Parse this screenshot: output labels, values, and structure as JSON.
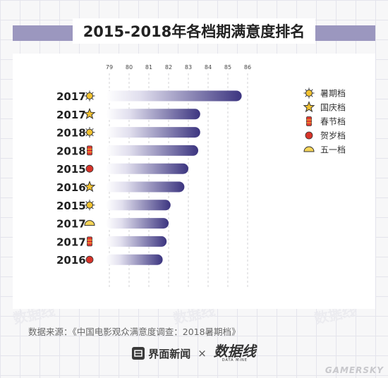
{
  "title": "2015-2018年各档期满意度排名",
  "source": "数据来源：《中国电影观众满意度调查：2018暑期档》",
  "brand_primary": "界面新闻",
  "brand_separator": "×",
  "brand_secondary": "数据线",
  "brand_secondary_sub": "DATA MINE",
  "watermark": "数据线",
  "corner_mark": "GAMERSKY",
  "colors": {
    "title_bar": "#9b97bf",
    "bar_dark": "#3c3580",
    "bar_light": "#ffffff",
    "sun": "#f2c230",
    "star": "#f2c230",
    "lantern": "#e03a2f",
    "dot": "#d8342a",
    "halfmoon": "#f6d458"
  },
  "legend": [
    {
      "label": "暑期档",
      "icon": "sun-icon"
    },
    {
      "label": "国庆档",
      "icon": "star-icon"
    },
    {
      "label": "春节档",
      "icon": "lantern-icon"
    },
    {
      "label": "贺岁档",
      "icon": "dot-icon"
    },
    {
      "label": "五一档",
      "icon": "halfmoon-icon"
    }
  ],
  "chart_data": {
    "type": "bar",
    "orientation": "horizontal",
    "title": "2015-2018年各档期满意度排名",
    "xlim": [
      79,
      86
    ],
    "x_ticks": [
      "79",
      "80",
      "81",
      "82",
      "83",
      "84",
      "85",
      "86"
    ],
    "grid": "vertical dashed",
    "legend_position": "top-right",
    "rows": [
      {
        "year": "2017",
        "period": "暑期档",
        "icon": "sun-icon",
        "value": 85.7
      },
      {
        "year": "2017",
        "period": "国庆档",
        "icon": "star-icon",
        "value": 83.6
      },
      {
        "year": "2018",
        "period": "暑期档",
        "icon": "sun-icon",
        "value": 83.6
      },
      {
        "year": "2018",
        "period": "春节档",
        "icon": "lantern-icon",
        "value": 83.5
      },
      {
        "year": "2015",
        "period": "贺岁档",
        "icon": "dot-icon",
        "value": 83.0
      },
      {
        "year": "2016",
        "period": "国庆档",
        "icon": "star-icon",
        "value": 82.8
      },
      {
        "year": "2015",
        "period": "暑期档",
        "icon": "sun-icon",
        "value": 82.1
      },
      {
        "year": "2017",
        "period": "五一档",
        "icon": "halfmoon-icon",
        "value": 82.0
      },
      {
        "year": "2017",
        "period": "春节档",
        "icon": "lantern-icon",
        "value": 81.9
      },
      {
        "year": "2016",
        "period": "贺岁档",
        "icon": "dot-icon",
        "value": 81.7
      }
    ]
  }
}
